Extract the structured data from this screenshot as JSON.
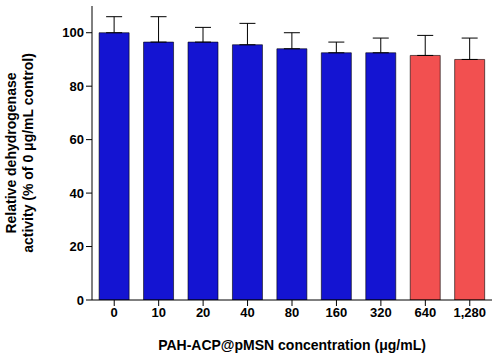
{
  "chart_data": {
    "type": "bar",
    "x_label": "PAH-ACP@pMSN concentration (μg/mL)",
    "y_label": "Relative dehydrogenase activity (% of 0 μg/mL control)",
    "categories": [
      "0",
      "10",
      "20",
      "40",
      "80",
      "160",
      "320",
      "640",
      "1,280"
    ],
    "values": [
      100,
      96.5,
      96.5,
      95.5,
      94,
      92.5,
      92.5,
      91.5,
      90
    ],
    "error": [
      6,
      9.5,
      5.5,
      8,
      6,
      4,
      5.5,
      7.5,
      8
    ],
    "colors": [
      "#1414d2",
      "#1414d2",
      "#1414d2",
      "#1414d2",
      "#1414d2",
      "#1414d2",
      "#1414d2",
      "#f25050",
      "#f25050"
    ],
    "ylim": [
      0,
      110
    ],
    "yticks": [
      0,
      20,
      40,
      60,
      80,
      100
    ],
    "grid": false
  }
}
